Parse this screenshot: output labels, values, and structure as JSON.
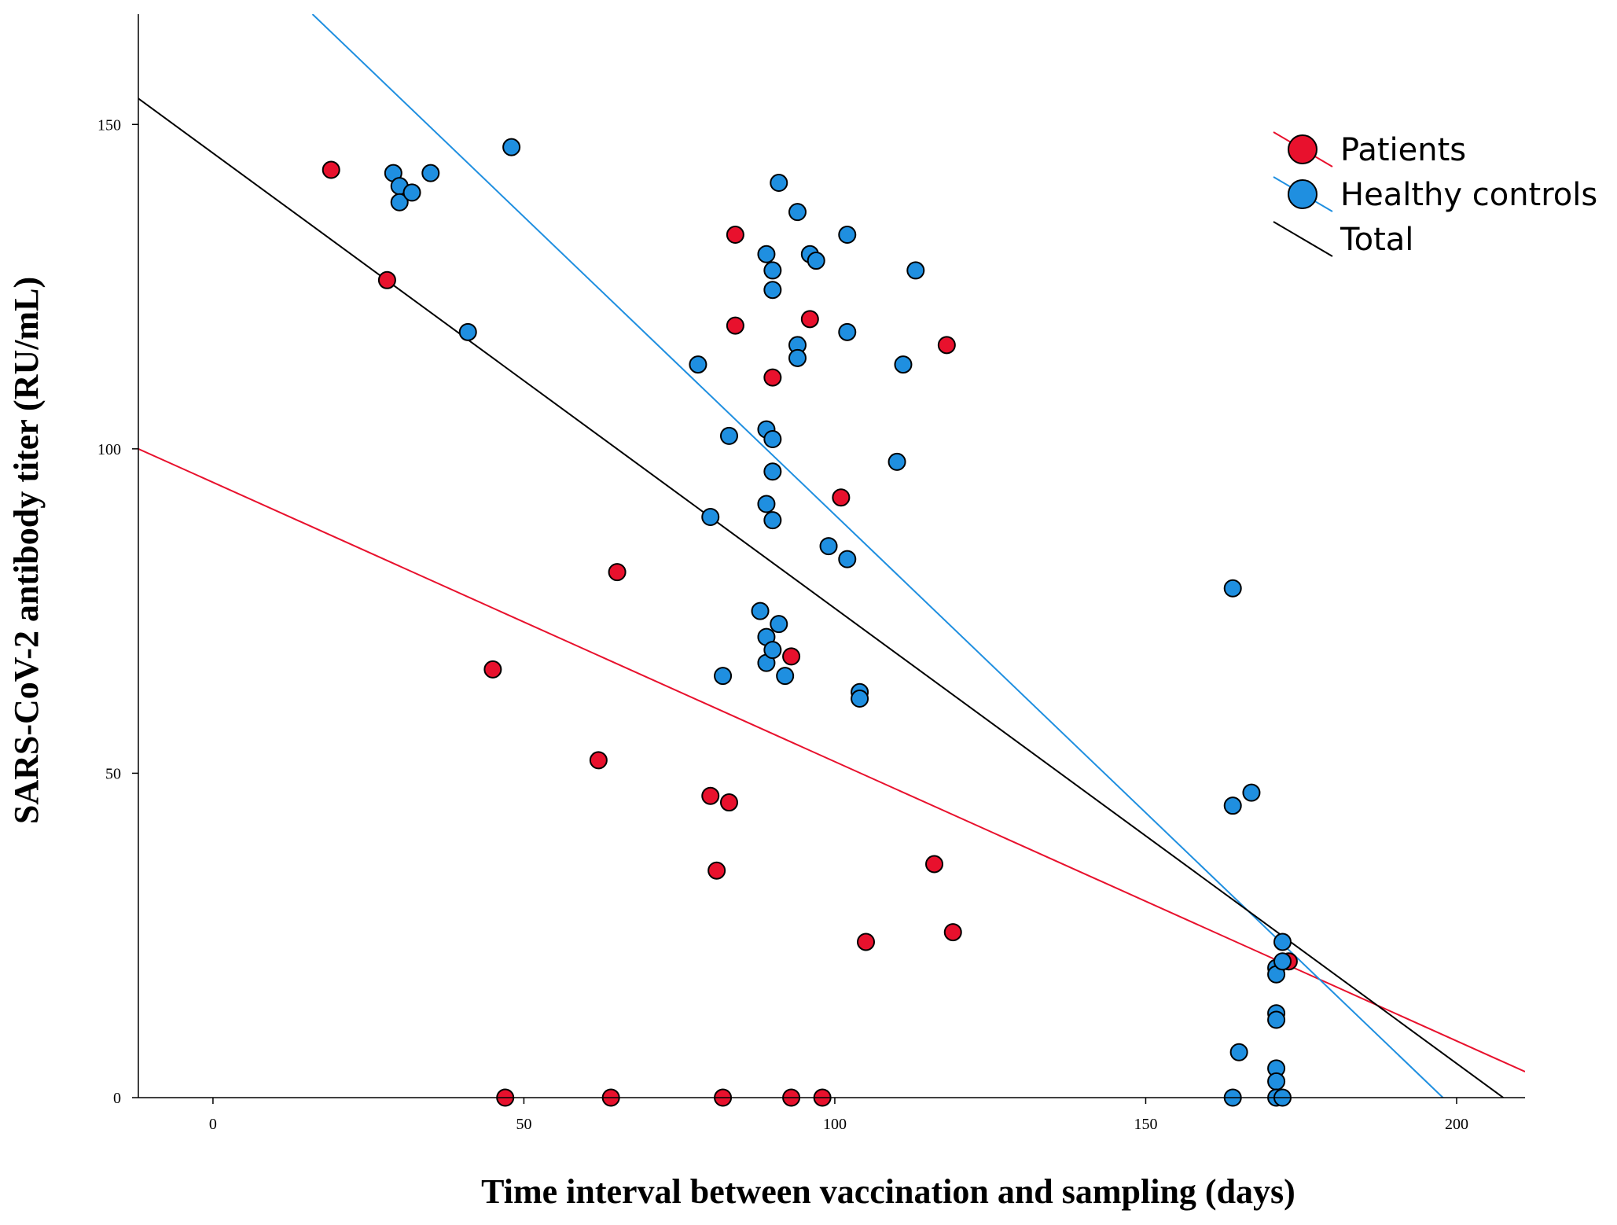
{
  "chart_data": {
    "type": "scatter",
    "title": "",
    "xlabel": "Time interval between vaccination and sampling (days)",
    "ylabel": "SARS-CoV-2 antibody titer (RU/mL)",
    "xlim": [
      -12,
      211
    ],
    "ylim": [
      0,
      167
    ],
    "xticks": [
      0,
      50,
      100,
      150,
      200
    ],
    "yticks": [
      0,
      50,
      100,
      150
    ],
    "legend_position": "top-right",
    "colors": {
      "patients": "#e8112d",
      "healthy": "#1f8fe0",
      "total": "#000000",
      "marker_edge": "#000000"
    },
    "series": [
      {
        "name": "Patients",
        "key": "patients",
        "points": [
          [
            19,
            143
          ],
          [
            28,
            126
          ],
          [
            45,
            66
          ],
          [
            47,
            0
          ],
          [
            62,
            52
          ],
          [
            64,
            0
          ],
          [
            65,
            81
          ],
          [
            80,
            46.5
          ],
          [
            81,
            35
          ],
          [
            82,
            0
          ],
          [
            83,
            45.5
          ],
          [
            84,
            133
          ],
          [
            84,
            119
          ],
          [
            90,
            111
          ],
          [
            93,
            68
          ],
          [
            93,
            0
          ],
          [
            96,
            120
          ],
          [
            98,
            0
          ],
          [
            101,
            92.5
          ],
          [
            105,
            24
          ],
          [
            116,
            36
          ],
          [
            118,
            116
          ],
          [
            119,
            25.5
          ],
          [
            173,
            21
          ]
        ]
      },
      {
        "name": "Healthy controls",
        "key": "healthy",
        "points": [
          [
            29,
            142.5
          ],
          [
            30,
            140.5
          ],
          [
            30,
            138
          ],
          [
            32,
            139.5
          ],
          [
            35,
            142.5
          ],
          [
            41,
            118
          ],
          [
            48,
            146.5
          ],
          [
            78,
            113
          ],
          [
            80,
            89.5
          ],
          [
            82,
            65
          ],
          [
            83,
            102
          ],
          [
            88,
            75
          ],
          [
            89,
            130
          ],
          [
            89,
            103
          ],
          [
            89,
            91.5
          ],
          [
            89,
            71
          ],
          [
            89,
            67
          ],
          [
            90,
            127.5
          ],
          [
            90,
            124.5
          ],
          [
            90,
            101.5
          ],
          [
            90,
            96.5
          ],
          [
            90,
            89
          ],
          [
            90,
            69
          ],
          [
            91,
            141
          ],
          [
            91,
            73
          ],
          [
            92,
            65
          ],
          [
            94,
            136.5
          ],
          [
            94,
            116
          ],
          [
            94,
            114
          ],
          [
            96,
            130
          ],
          [
            97,
            129
          ],
          [
            99,
            85
          ],
          [
            102,
            133
          ],
          [
            102,
            118
          ],
          [
            102,
            83
          ],
          [
            104,
            62.5
          ],
          [
            104,
            61.5
          ],
          [
            110,
            98
          ],
          [
            111,
            113
          ],
          [
            113,
            127.5
          ],
          [
            164,
            78.5
          ],
          [
            164,
            45
          ],
          [
            164,
            0
          ],
          [
            165,
            7
          ],
          [
            167,
            47
          ],
          [
            171,
            20
          ],
          [
            171,
            19
          ],
          [
            171,
            13
          ],
          [
            171,
            12
          ],
          [
            171,
            4.5
          ],
          [
            171,
            2.5
          ],
          [
            171,
            0
          ],
          [
            172,
            24
          ],
          [
            172,
            21
          ],
          [
            172,
            0
          ]
        ]
      }
    ],
    "fit_lines": [
      {
        "name": "Patients",
        "key": "patients",
        "x": [
          -12,
          211
        ],
        "y": [
          100,
          4
        ]
      },
      {
        "name": "Healthy controls",
        "key": "healthy",
        "x": [
          16,
          197.8
        ],
        "y": [
          167,
          0
        ]
      },
      {
        "name": "Total",
        "key": "total",
        "x": [
          -12,
          207.5
        ],
        "y": [
          154,
          0
        ]
      }
    ],
    "legend": [
      {
        "label": "Patients",
        "key": "patients",
        "marker": true
      },
      {
        "label": "Healthy controls",
        "key": "healthy",
        "marker": true
      },
      {
        "label": "Total",
        "key": "total",
        "marker": false
      }
    ]
  }
}
